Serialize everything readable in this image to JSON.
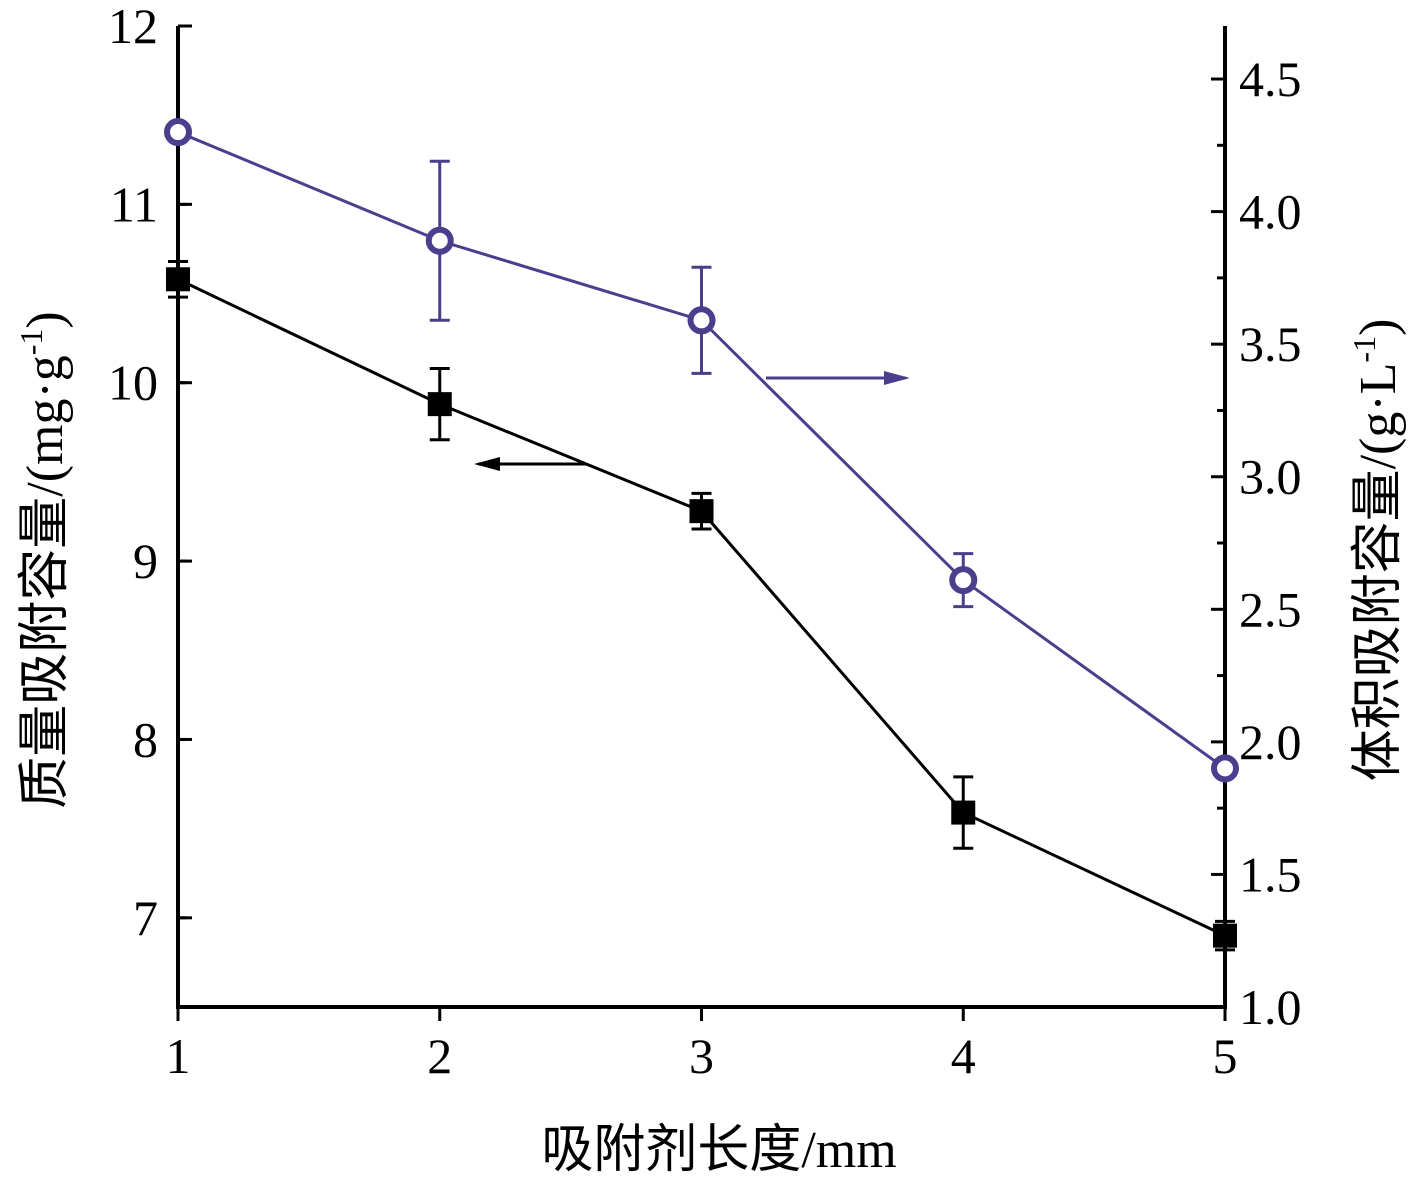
{
  "chart_data": {
    "type": "line",
    "x": [
      1,
      2,
      3,
      4,
      5
    ],
    "xlabel": "吸附剂长度/mm",
    "xlim": [
      1,
      5
    ],
    "xticks": [
      "1",
      "2",
      "3",
      "4",
      "5"
    ],
    "left_axis": {
      "label": "质量吸附容量/(mg·g",
      "label_sup": "-1",
      "label_close": ")",
      "ylim": [
        6.5,
        12
      ],
      "ticks": [
        "7",
        "8",
        "9",
        "10",
        "11",
        "12"
      ]
    },
    "right_axis": {
      "label": "体积吸附容量/(g·L",
      "label_sup": "-1",
      "label_close": ")",
      "ylim": [
        1.0,
        4.7
      ],
      "ticks": [
        "1.0",
        "1.5",
        "2.0",
        "2.5",
        "3.0",
        "3.5",
        "4.0",
        "4.5"
      ]
    },
    "series": [
      {
        "axis": "left",
        "marker": "square",
        "color": "#000000",
        "values": [
          10.58,
          9.88,
          9.28,
          7.59,
          6.9
        ],
        "errors": [
          0.1,
          0.2,
          0.1,
          0.2,
          0.08
        ]
      },
      {
        "axis": "right",
        "marker": "circle",
        "color": "#4a3f8c",
        "values": [
          4.3,
          3.89,
          3.59,
          2.61,
          1.9
        ],
        "errors": [
          0.02,
          0.3,
          0.2,
          0.1,
          0.02
        ]
      }
    ],
    "annotations": [
      {
        "type": "arrow",
        "points_to": "left",
        "series": 0
      },
      {
        "type": "arrow",
        "points_to": "right",
        "series": 1
      }
    ],
    "grid": false,
    "legend": "none"
  }
}
